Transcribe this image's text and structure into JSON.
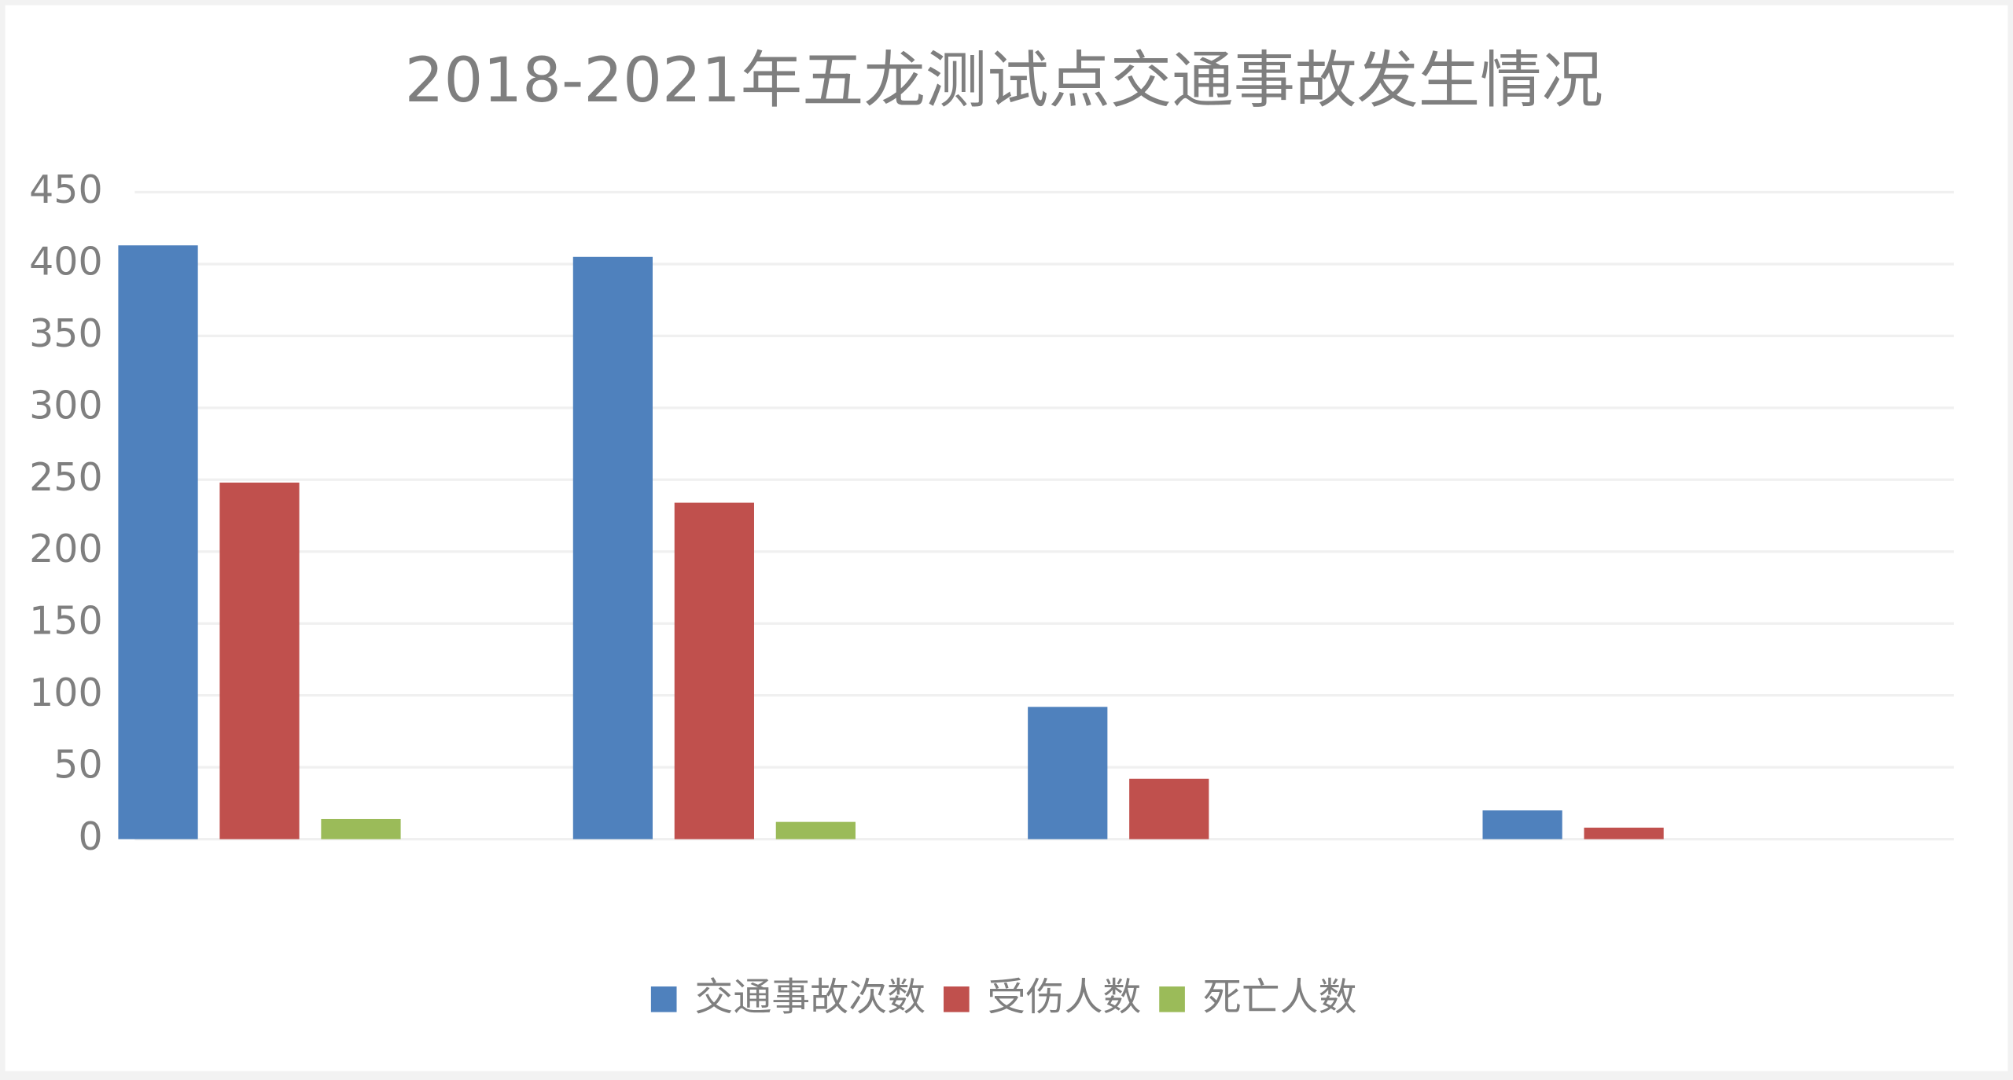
{
  "chart_data": {
    "type": "bar",
    "title": "2018-2021年五龙测试点交通事故发生情况",
    "categories": [
      null,
      null,
      null,
      null
    ],
    "series": [
      {
        "name": "交通事故次数",
        "color": "#4f81bd",
        "values": [
          413,
          405,
          92,
          20
        ]
      },
      {
        "name": "受伤人数",
        "color": "#c0504d",
        "values": [
          248,
          234,
          42,
          8
        ]
      },
      {
        "name": "死亡人数",
        "color": "#9bbb59",
        "values": [
          14,
          12,
          0,
          0
        ]
      }
    ],
    "ylim": [
      0,
      450
    ],
    "yticks": [
      0,
      50,
      100,
      150,
      200,
      250,
      300,
      350,
      400,
      450
    ],
    "grid": true,
    "legend": "bottom"
  }
}
